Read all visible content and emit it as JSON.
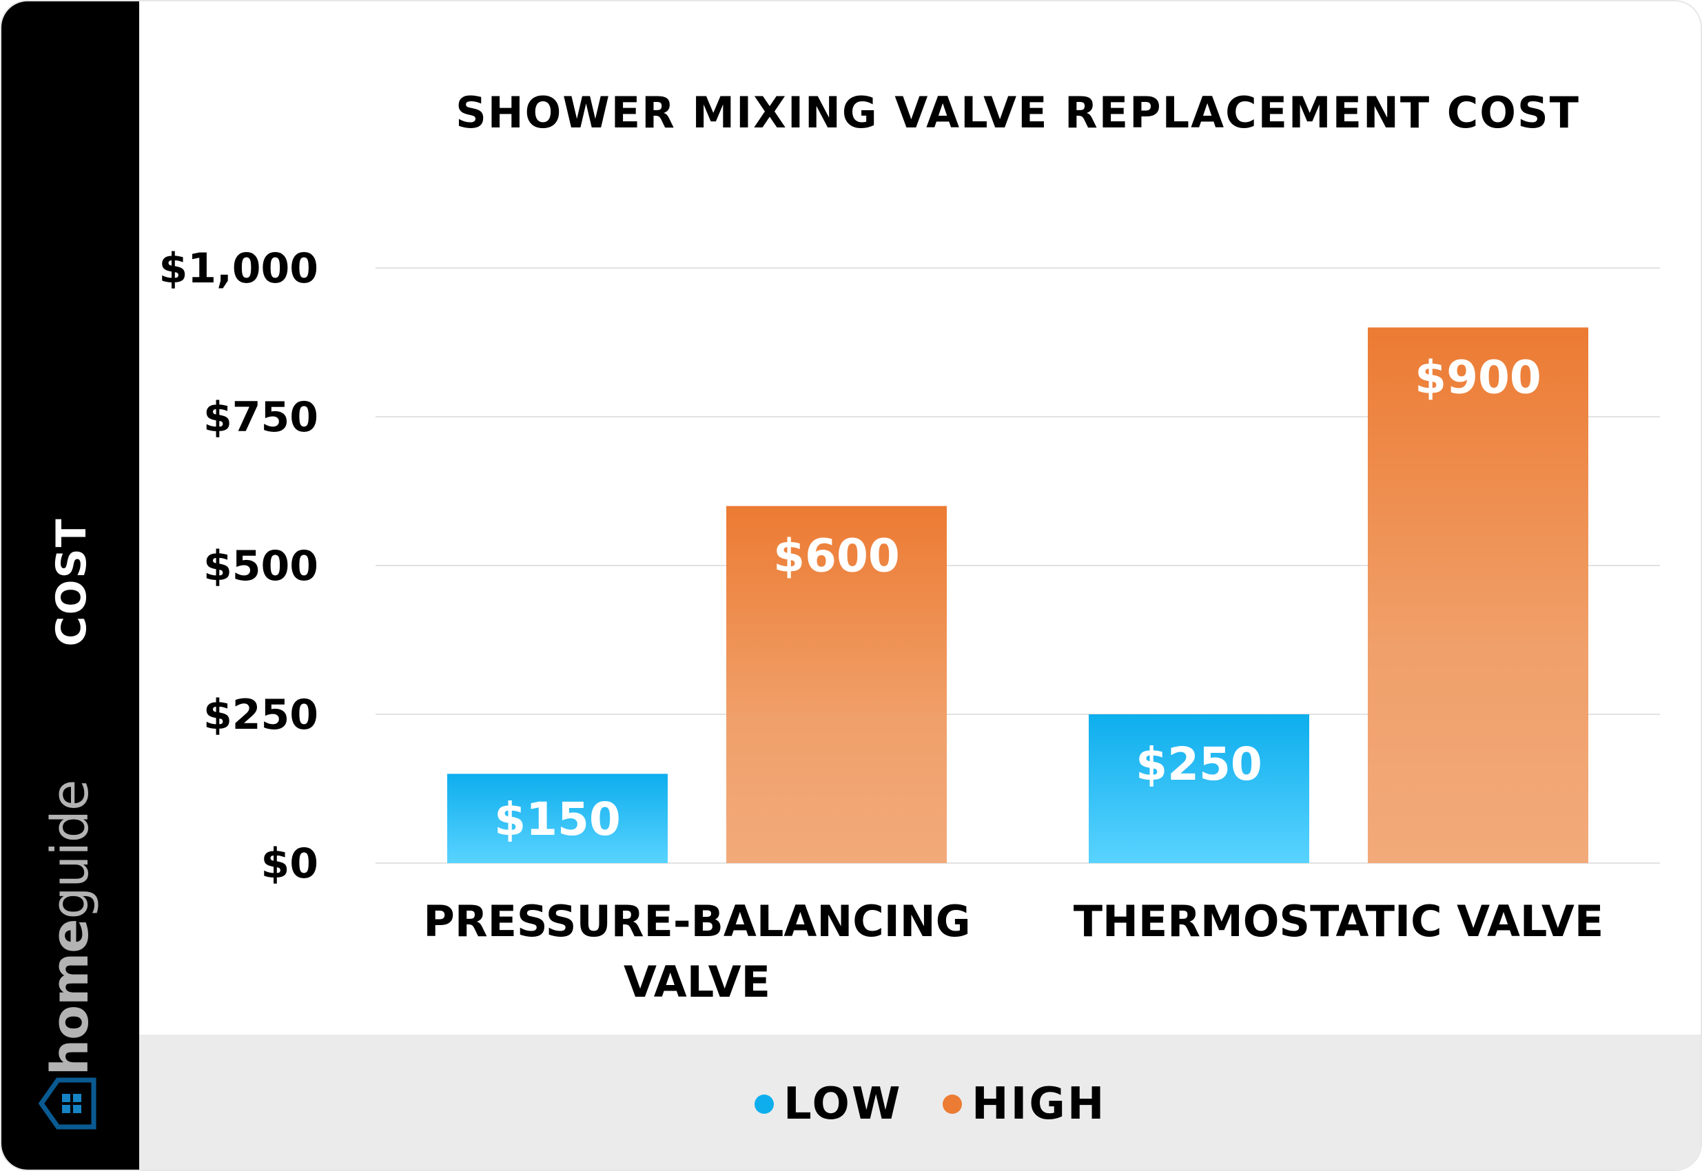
{
  "brand": {
    "part1": "home",
    "part2": "guide"
  },
  "chart_data": {
    "type": "bar",
    "title": "SHOWER MIXING VALVE REPLACEMENT COST",
    "ylabel": "COST",
    "xlabel": "",
    "categories": [
      [
        "PRESSURE-BALANCING",
        "VALVE"
      ],
      [
        "THERMOSTATIC VALVE"
      ]
    ],
    "series": [
      {
        "name": "LOW",
        "values": [
          150,
          250
        ],
        "labels": [
          "$150",
          "$250"
        ],
        "color": "#0eaeed"
      },
      {
        "name": "HIGH",
        "values": [
          600,
          900
        ],
        "labels": [
          "$600",
          "$900"
        ],
        "color": "#ec7b33"
      }
    ],
    "ylim": [
      0,
      1000
    ],
    "yticks": [
      0,
      250,
      500,
      750,
      1000
    ],
    "ytick_labels": [
      "$0",
      "$250",
      "$500",
      "$750",
      "$1,000"
    ],
    "grid": true,
    "legend_position": "bottom"
  }
}
